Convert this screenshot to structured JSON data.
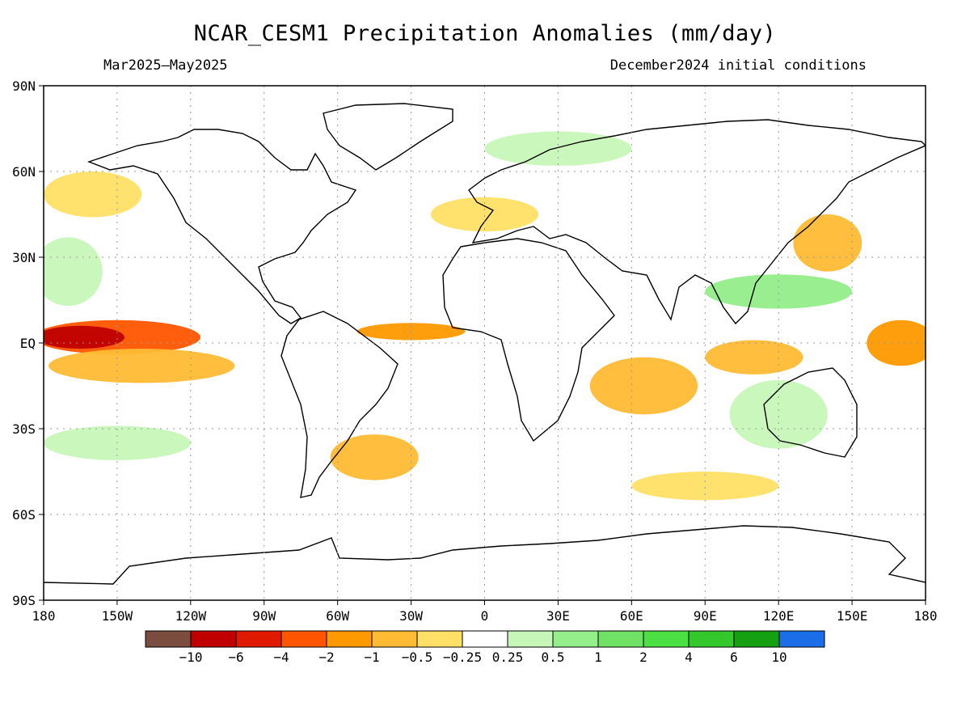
{
  "header": {
    "title": "NCAR_CESM1 Precipitation Anomalies (mm/day)",
    "period": "Mar2025–May2025",
    "init": "December2024 initial conditions"
  },
  "map": {
    "lat_labels": [
      "90N",
      "60N",
      "30N",
      "EQ",
      "30S",
      "60S",
      "90S"
    ],
    "lat_values": [
      90,
      60,
      30,
      0,
      -30,
      -60,
      -90
    ],
    "lon_labels": [
      "180",
      "150W",
      "120W",
      "90W",
      "60W",
      "30W",
      "0",
      "30E",
      "60E",
      "90E",
      "120E",
      "150E",
      "180"
    ],
    "lon_values": [
      -180,
      -150,
      -120,
      -90,
      -60,
      -30,
      0,
      30,
      60,
      90,
      120,
      150,
      180
    ],
    "anomaly_regions": [
      {
        "lon": -150,
        "lat": 2,
        "rx": 34,
        "ry": 6,
        "level": "-4"
      },
      {
        "lon": -165,
        "lat": 2,
        "rx": 18,
        "ry": 4,
        "level": "-10"
      },
      {
        "lon": -140,
        "lat": -8,
        "rx": 38,
        "ry": 6,
        "level": "-1"
      },
      {
        "lon": 170,
        "lat": 0,
        "rx": 14,
        "ry": 8,
        "level": "-2"
      },
      {
        "lon": -30,
        "lat": 4,
        "rx": 22,
        "ry": 3,
        "level": "-2"
      },
      {
        "lon": 65,
        "lat": -15,
        "rx": 22,
        "ry": 10,
        "level": "-1"
      },
      {
        "lon": 110,
        "lat": -5,
        "rx": 20,
        "ry": 6,
        "level": "-1"
      },
      {
        "lon": 140,
        "lat": 35,
        "rx": 14,
        "ry": 10,
        "level": "-1"
      },
      {
        "lon": -160,
        "lat": 52,
        "rx": 20,
        "ry": 8,
        "level": "-0.5"
      },
      {
        "lon": -45,
        "lat": -40,
        "rx": 18,
        "ry": 8,
        "level": "-1"
      },
      {
        "lon": 0,
        "lat": 45,
        "rx": 22,
        "ry": 6,
        "level": "-0.5"
      },
      {
        "lon": -170,
        "lat": 25,
        "rx": 14,
        "ry": 12,
        "level": "0.5"
      },
      {
        "lon": 120,
        "lat": 18,
        "rx": 30,
        "ry": 6,
        "level": "1"
      },
      {
        "lon": 120,
        "lat": -25,
        "rx": 20,
        "ry": 12,
        "level": "0.5"
      },
      {
        "lon": 30,
        "lat": 68,
        "rx": 30,
        "ry": 6,
        "level": "0.5"
      },
      {
        "lon": -150,
        "lat": -35,
        "rx": 30,
        "ry": 6,
        "level": "0.5"
      },
      {
        "lon": 90,
        "lat": -50,
        "rx": 30,
        "ry": 5,
        "level": "-0.5"
      }
    ]
  },
  "colorbar": {
    "colors": [
      "#7a4d3f",
      "#c00000",
      "#e01a00",
      "#ff5500",
      "#ff9900",
      "#ffbb33",
      "#ffe066",
      "#ffffff",
      "#c6f7b8",
      "#94ee8a",
      "#70e366",
      "#4ce044",
      "#34c82c",
      "#14a010",
      "#1c6ee8"
    ],
    "labels": [
      "−10",
      "−6",
      "−4",
      "−2",
      "−1",
      "−0.5",
      "−0.25",
      "0.25",
      "0.5",
      "1",
      "2",
      "4",
      "6",
      "10"
    ]
  },
  "level_colors": {
    "-10": "#c00000",
    "-6": "#e01a00",
    "-4": "#ff5500",
    "-2": "#ff9900",
    "-1": "#ffbb33",
    "-0.5": "#ffe066",
    "0.5": "#c6f7b8",
    "1": "#94ee8a",
    "2": "#70e366"
  }
}
